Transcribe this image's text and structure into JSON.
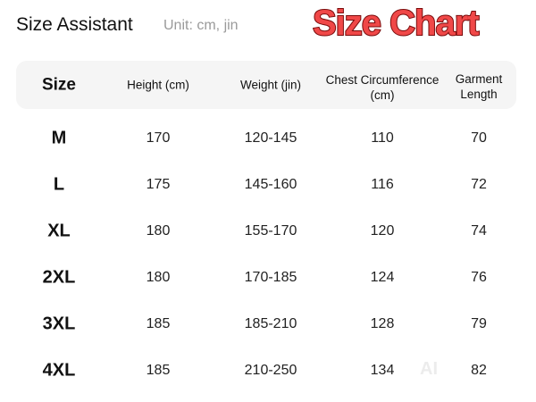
{
  "header": {
    "title": "Size Assistant",
    "unit": "Unit: cm,  jin",
    "chart_title": "Size Chart"
  },
  "table": {
    "columns": [
      "Size",
      "Height (cm)",
      "Weight (jin)",
      "Chest Circumference (cm)",
      "Garment Length"
    ],
    "rows": [
      [
        "M",
        "170",
        "120-145",
        "110",
        "70"
      ],
      [
        "L",
        "175",
        "145-160",
        "116",
        "72"
      ],
      [
        "XL",
        "180",
        "155-170",
        "120",
        "74"
      ],
      [
        "2XL",
        "180",
        "170-185",
        "124",
        "76"
      ],
      [
        "3XL",
        "185",
        "185-210",
        "128",
        "79"
      ],
      [
        "4XL",
        "185",
        "210-250",
        "134",
        "82"
      ]
    ]
  },
  "watermark": "AI",
  "colors": {
    "chart_title": "#f04848",
    "chart_title_outline": "#7a0c0c",
    "header_bg": "#f5f5f5"
  }
}
